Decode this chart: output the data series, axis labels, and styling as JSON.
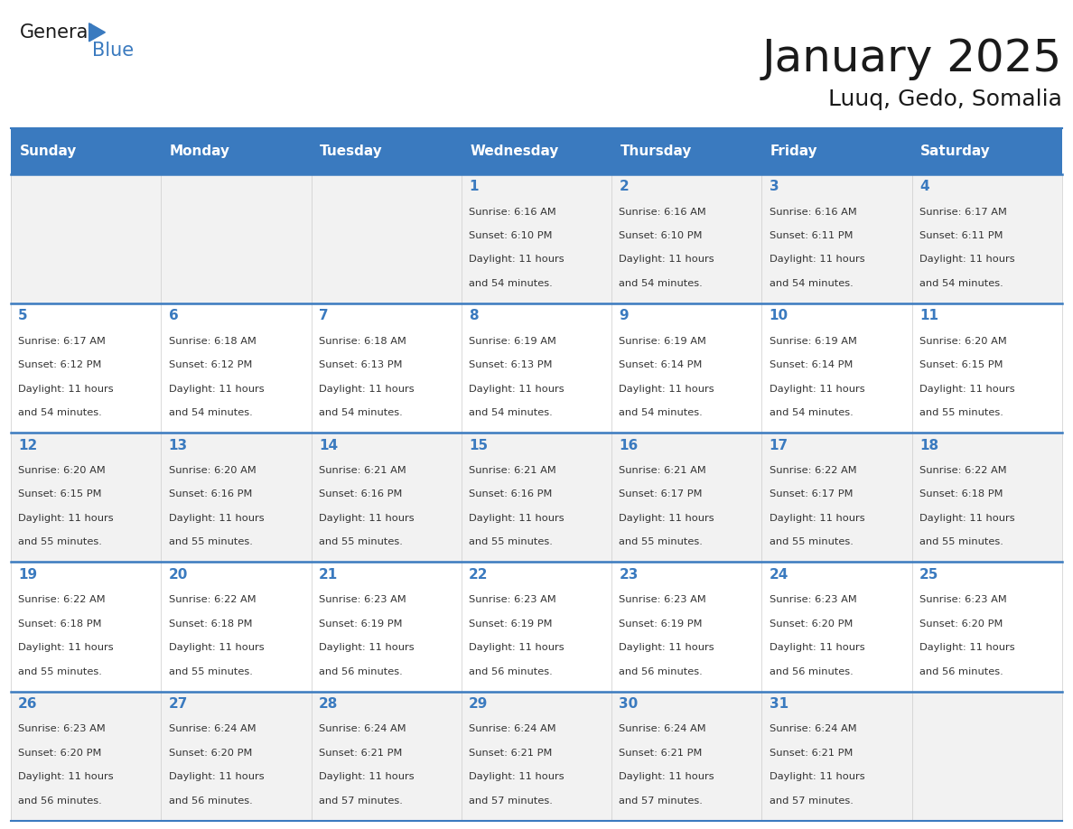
{
  "title": "January 2025",
  "subtitle": "Luuq, Gedo, Somalia",
  "days_of_week": [
    "Sunday",
    "Monday",
    "Tuesday",
    "Wednesday",
    "Thursday",
    "Friday",
    "Saturday"
  ],
  "header_bg": "#3A7ABF",
  "header_text": "#FFFFFF",
  "row_bg_odd": "#F2F2F2",
  "row_bg_even": "#FFFFFF",
  "day_num_color": "#3A7ABF",
  "text_color": "#333333",
  "line_color": "#3A7ABF",
  "calendar": [
    [
      {
        "day": null,
        "sunrise": null,
        "sunset": null,
        "daylight": null
      },
      {
        "day": null,
        "sunrise": null,
        "sunset": null,
        "daylight": null
      },
      {
        "day": null,
        "sunrise": null,
        "sunset": null,
        "daylight": null
      },
      {
        "day": 1,
        "sunrise": "6:16 AM",
        "sunset": "6:10 PM",
        "daylight": "11 hours and 54 minutes."
      },
      {
        "day": 2,
        "sunrise": "6:16 AM",
        "sunset": "6:10 PM",
        "daylight": "11 hours and 54 minutes."
      },
      {
        "day": 3,
        "sunrise": "6:16 AM",
        "sunset": "6:11 PM",
        "daylight": "11 hours and 54 minutes."
      },
      {
        "day": 4,
        "sunrise": "6:17 AM",
        "sunset": "6:11 PM",
        "daylight": "11 hours and 54 minutes."
      }
    ],
    [
      {
        "day": 5,
        "sunrise": "6:17 AM",
        "sunset": "6:12 PM",
        "daylight": "11 hours and 54 minutes."
      },
      {
        "day": 6,
        "sunrise": "6:18 AM",
        "sunset": "6:12 PM",
        "daylight": "11 hours and 54 minutes."
      },
      {
        "day": 7,
        "sunrise": "6:18 AM",
        "sunset": "6:13 PM",
        "daylight": "11 hours and 54 minutes."
      },
      {
        "day": 8,
        "sunrise": "6:19 AM",
        "sunset": "6:13 PM",
        "daylight": "11 hours and 54 minutes."
      },
      {
        "day": 9,
        "sunrise": "6:19 AM",
        "sunset": "6:14 PM",
        "daylight": "11 hours and 54 minutes."
      },
      {
        "day": 10,
        "sunrise": "6:19 AM",
        "sunset": "6:14 PM",
        "daylight": "11 hours and 54 minutes."
      },
      {
        "day": 11,
        "sunrise": "6:20 AM",
        "sunset": "6:15 PM",
        "daylight": "11 hours and 55 minutes."
      }
    ],
    [
      {
        "day": 12,
        "sunrise": "6:20 AM",
        "sunset": "6:15 PM",
        "daylight": "11 hours and 55 minutes."
      },
      {
        "day": 13,
        "sunrise": "6:20 AM",
        "sunset": "6:16 PM",
        "daylight": "11 hours and 55 minutes."
      },
      {
        "day": 14,
        "sunrise": "6:21 AM",
        "sunset": "6:16 PM",
        "daylight": "11 hours and 55 minutes."
      },
      {
        "day": 15,
        "sunrise": "6:21 AM",
        "sunset": "6:16 PM",
        "daylight": "11 hours and 55 minutes."
      },
      {
        "day": 16,
        "sunrise": "6:21 AM",
        "sunset": "6:17 PM",
        "daylight": "11 hours and 55 minutes."
      },
      {
        "day": 17,
        "sunrise": "6:22 AM",
        "sunset": "6:17 PM",
        "daylight": "11 hours and 55 minutes."
      },
      {
        "day": 18,
        "sunrise": "6:22 AM",
        "sunset": "6:18 PM",
        "daylight": "11 hours and 55 minutes."
      }
    ],
    [
      {
        "day": 19,
        "sunrise": "6:22 AM",
        "sunset": "6:18 PM",
        "daylight": "11 hours and 55 minutes."
      },
      {
        "day": 20,
        "sunrise": "6:22 AM",
        "sunset": "6:18 PM",
        "daylight": "11 hours and 55 minutes."
      },
      {
        "day": 21,
        "sunrise": "6:23 AM",
        "sunset": "6:19 PM",
        "daylight": "11 hours and 56 minutes."
      },
      {
        "day": 22,
        "sunrise": "6:23 AM",
        "sunset": "6:19 PM",
        "daylight": "11 hours and 56 minutes."
      },
      {
        "day": 23,
        "sunrise": "6:23 AM",
        "sunset": "6:19 PM",
        "daylight": "11 hours and 56 minutes."
      },
      {
        "day": 24,
        "sunrise": "6:23 AM",
        "sunset": "6:20 PM",
        "daylight": "11 hours and 56 minutes."
      },
      {
        "day": 25,
        "sunrise": "6:23 AM",
        "sunset": "6:20 PM",
        "daylight": "11 hours and 56 minutes."
      }
    ],
    [
      {
        "day": 26,
        "sunrise": "6:23 AM",
        "sunset": "6:20 PM",
        "daylight": "11 hours and 56 minutes."
      },
      {
        "day": 27,
        "sunrise": "6:24 AM",
        "sunset": "6:20 PM",
        "daylight": "11 hours and 56 minutes."
      },
      {
        "day": 28,
        "sunrise": "6:24 AM",
        "sunset": "6:21 PM",
        "daylight": "11 hours and 57 minutes."
      },
      {
        "day": 29,
        "sunrise": "6:24 AM",
        "sunset": "6:21 PM",
        "daylight": "11 hours and 57 minutes."
      },
      {
        "day": 30,
        "sunrise": "6:24 AM",
        "sunset": "6:21 PM",
        "daylight": "11 hours and 57 minutes."
      },
      {
        "day": 31,
        "sunrise": "6:24 AM",
        "sunset": "6:21 PM",
        "daylight": "11 hours and 57 minutes."
      },
      {
        "day": null,
        "sunrise": null,
        "sunset": null,
        "daylight": null
      }
    ]
  ]
}
